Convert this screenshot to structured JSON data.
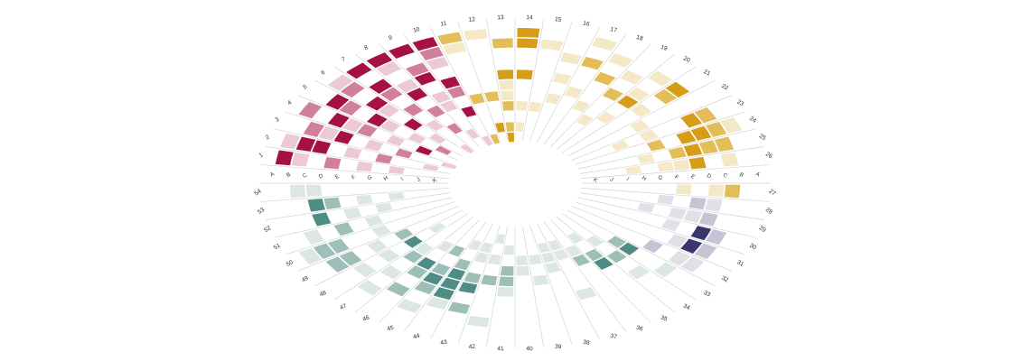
{
  "chart_data": {
    "type": "heatmap",
    "layout": "radial-ellipse",
    "title": "",
    "rings": [
      "A",
      "B",
      "C",
      "D",
      "E",
      "F",
      "G",
      "H",
      "I",
      "J",
      "K"
    ],
    "ring_order": "A outermost, K innermost; letter axis shown on both left and right horizontals",
    "spoke_count": 54,
    "value_scale": "0=empty, 1=light, 2=medium, 3=dark",
    "layout_hints": {
      "center_hole": true,
      "ellipse_y_ratio": 0.645,
      "grid": "spoke rays only",
      "legend": "none"
    },
    "groups": [
      {
        "name": "red",
        "from": 1,
        "to": 10,
        "colors": {
          "1": "#eccad5",
          "2": "#d07f9d",
          "3": "#a61145"
        }
      },
      {
        "name": "gold",
        "from": 11,
        "to": 27,
        "colors": {
          "1": "#f4e8c6",
          "2": "#e2bd58",
          "3": "#d69d18"
        }
      },
      {
        "name": "purple",
        "from": 28,
        "to": 32,
        "colors": {
          "1": "#e1e0e9",
          "2": "#c5c4d4",
          "3": "#39366e"
        }
      },
      {
        "name": "teal",
        "from": 33,
        "to": 54,
        "colors": {
          "1": "#dce7e4",
          "2": "#9dbfb8",
          "3": "#4f8c85"
        }
      }
    ],
    "spokes": [
      {
        "n": 1,
        "values": [
          3,
          1,
          0,
          2,
          0,
          1,
          0,
          1,
          0,
          0,
          0
        ]
      },
      {
        "n": 2,
        "values": [
          1,
          3,
          3,
          0,
          1,
          0,
          2,
          0,
          0,
          1,
          0
        ]
      },
      {
        "n": 3,
        "values": [
          0,
          2,
          1,
          3,
          0,
          1,
          0,
          2,
          0,
          0,
          1
        ]
      },
      {
        "n": 4,
        "values": [
          2,
          0,
          3,
          1,
          2,
          0,
          1,
          0,
          3,
          0,
          0
        ]
      },
      {
        "n": 5,
        "values": [
          0,
          3,
          2,
          0,
          3,
          1,
          0,
          1,
          0,
          2,
          0
        ]
      },
      {
        "n": 6,
        "values": [
          1,
          2,
          0,
          3,
          1,
          0,
          3,
          0,
          1,
          0,
          0
        ]
      },
      {
        "n": 7,
        "values": [
          3,
          0,
          3,
          2,
          0,
          2,
          0,
          1,
          0,
          0,
          1
        ]
      },
      {
        "n": 8,
        "values": [
          3,
          1,
          0,
          1,
          3,
          0,
          2,
          0,
          2,
          0,
          0
        ]
      },
      {
        "n": 9,
        "values": [
          3,
          0,
          2,
          3,
          0,
          1,
          1,
          0,
          0,
          1,
          0
        ]
      },
      {
        "n": 10,
        "values": [
          3,
          2,
          1,
          0,
          3,
          2,
          0,
          3,
          0,
          0,
          1
        ]
      },
      {
        "n": 11,
        "values": [
          2,
          1,
          0,
          0,
          0,
          0,
          2,
          0,
          0,
          0,
          2
        ]
      },
      {
        "n": 12,
        "values": [
          1,
          0,
          0,
          0,
          0,
          0,
          2,
          0,
          0,
          3,
          0
        ]
      },
      {
        "n": 13,
        "values": [
          0,
          2,
          0,
          0,
          3,
          1,
          1,
          2,
          0,
          2,
          3
        ]
      },
      {
        "n": 14,
        "values": [
          3,
          3,
          0,
          0,
          3,
          0,
          0,
          1,
          0,
          1,
          0
        ]
      },
      {
        "n": 15,
        "values": [
          0,
          1,
          0,
          0,
          0,
          0,
          0,
          1,
          0,
          0,
          0
        ]
      },
      {
        "n": 16,
        "values": [
          0,
          0,
          1,
          0,
          1,
          0,
          1,
          0,
          0,
          0,
          0
        ]
      },
      {
        "n": 17,
        "values": [
          1,
          0,
          2,
          0,
          0,
          1,
          0,
          0,
          0,
          0,
          0
        ]
      },
      {
        "n": 18,
        "values": [
          0,
          1,
          0,
          2,
          0,
          0,
          1,
          0,
          0,
          0,
          0
        ]
      },
      {
        "n": 19,
        "values": [
          0,
          0,
          1,
          0,
          2,
          0,
          0,
          1,
          0,
          0,
          0
        ]
      },
      {
        "n": 20,
        "values": [
          0,
          1,
          0,
          1,
          3,
          0,
          1,
          0,
          0,
          0,
          0
        ]
      },
      {
        "n": 21,
        "values": [
          0,
          3,
          2,
          0,
          1,
          0,
          0,
          0,
          0,
          0,
          0
        ]
      },
      {
        "n": 22,
        "values": [
          0,
          0,
          0,
          0,
          0,
          1,
          0,
          0,
          0,
          0,
          0
        ]
      },
      {
        "n": 23,
        "values": [
          0,
          2,
          3,
          0,
          0,
          1,
          0,
          1,
          0,
          0,
          0
        ]
      },
      {
        "n": 24,
        "values": [
          1,
          2,
          3,
          3,
          0,
          2,
          0,
          0,
          0,
          0,
          0
        ]
      },
      {
        "n": 25,
        "values": [
          0,
          2,
          2,
          3,
          2,
          0,
          1,
          0,
          0,
          0,
          0
        ]
      },
      {
        "n": 26,
        "values": [
          0,
          1,
          0,
          3,
          1,
          1,
          0,
          1,
          0,
          0,
          0
        ]
      },
      {
        "n": 27,
        "values": [
          0,
          2,
          1,
          0,
          1,
          0,
          0,
          0,
          0,
          0,
          0
        ]
      },
      {
        "n": 28,
        "values": [
          0,
          0,
          1,
          2,
          0,
          1,
          0,
          0,
          0,
          0,
          0
        ]
      },
      {
        "n": 29,
        "values": [
          0,
          0,
          2,
          1,
          1,
          0,
          1,
          0,
          0,
          0,
          0
        ]
      },
      {
        "n": 30,
        "values": [
          0,
          2,
          3,
          0,
          1,
          0,
          0,
          0,
          0,
          0,
          0
        ]
      },
      {
        "n": 31,
        "values": [
          0,
          2,
          3,
          1,
          0,
          0,
          0,
          0,
          0,
          0,
          0
        ]
      },
      {
        "n": 32,
        "values": [
          0,
          1,
          1,
          0,
          2,
          0,
          0,
          0,
          0,
          0,
          0
        ]
      },
      {
        "n": 33,
        "values": [
          0,
          0,
          1,
          0,
          0,
          3,
          2,
          0,
          0,
          0,
          0
        ]
      },
      {
        "n": 34,
        "values": [
          0,
          0,
          0,
          1,
          0,
          2,
          0,
          1,
          0,
          0,
          0
        ]
      },
      {
        "n": 35,
        "values": [
          0,
          0,
          0,
          0,
          0,
          3,
          2,
          0,
          1,
          0,
          0
        ]
      },
      {
        "n": 36,
        "values": [
          0,
          0,
          0,
          0,
          0,
          0,
          2,
          1,
          0,
          0,
          0
        ]
      },
      {
        "n": 37,
        "values": [
          0,
          0,
          0,
          1,
          0,
          0,
          0,
          1,
          1,
          0,
          0
        ]
      },
      {
        "n": 38,
        "values": [
          0,
          0,
          0,
          0,
          0,
          0,
          1,
          1,
          1,
          0,
          0
        ]
      },
      {
        "n": 39,
        "values": [
          0,
          0,
          0,
          0,
          0,
          1,
          0,
          1,
          0,
          0,
          0
        ]
      },
      {
        "n": 40,
        "values": [
          0,
          0,
          0,
          0,
          0,
          0,
          1,
          1,
          0,
          0,
          0
        ]
      },
      {
        "n": 41,
        "values": [
          0,
          0,
          0,
          0,
          1,
          2,
          2,
          0,
          1,
          0,
          0
        ]
      },
      {
        "n": 42,
        "values": [
          0,
          1,
          0,
          0,
          0,
          2,
          0,
          1,
          0,
          1,
          0
        ]
      },
      {
        "n": 43,
        "values": [
          0,
          0,
          2,
          0,
          3,
          2,
          0,
          1,
          1,
          0,
          0
        ]
      },
      {
        "n": 44,
        "values": [
          0,
          0,
          1,
          3,
          3,
          3,
          2,
          0,
          1,
          0,
          0
        ]
      },
      {
        "n": 45,
        "values": [
          0,
          1,
          0,
          2,
          3,
          2,
          0,
          2,
          0,
          0,
          0
        ]
      },
      {
        "n": 46,
        "values": [
          0,
          0,
          2,
          0,
          2,
          3,
          0,
          1,
          0,
          0,
          0
        ]
      },
      {
        "n": 47,
        "values": [
          0,
          1,
          0,
          1,
          0,
          2,
          1,
          0,
          0,
          0,
          0
        ]
      },
      {
        "n": 48,
        "values": [
          0,
          0,
          1,
          0,
          1,
          0,
          3,
          0,
          1,
          0,
          0
        ]
      },
      {
        "n": 49,
        "values": [
          0,
          2,
          2,
          0,
          1,
          0,
          2,
          0,
          0,
          0,
          0
        ]
      },
      {
        "n": 50,
        "values": [
          1,
          2,
          2,
          0,
          0,
          1,
          0,
          0,
          0,
          0,
          0
        ]
      },
      {
        "n": 51,
        "values": [
          0,
          1,
          0,
          2,
          0,
          1,
          0,
          0,
          0,
          0,
          0
        ]
      },
      {
        "n": 52,
        "values": [
          0,
          0,
          3,
          0,
          1,
          0,
          1,
          0,
          0,
          0,
          0
        ]
      },
      {
        "n": 53,
        "values": [
          0,
          0,
          3,
          2,
          0,
          1,
          0,
          1,
          0,
          0,
          0
        ]
      },
      {
        "n": 54,
        "values": [
          0,
          1,
          1,
          0,
          0,
          0,
          0,
          0,
          0,
          0,
          0
        ]
      }
    ]
  }
}
